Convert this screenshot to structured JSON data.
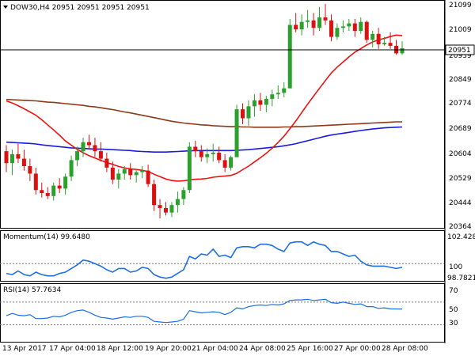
{
  "header": {
    "symbol_line": "DOW30,H4  20951 20951 20951 20951"
  },
  "colors": {
    "bull": "#2ca02c",
    "bear": "#dd1010",
    "sma20": "#ee1111",
    "sma100": "#1a1ae0",
    "sma200": "#8b3a1a",
    "momentum": "#1e6fe0",
    "rsi": "#1e6fe0",
    "price_tag_bg": "#ffffff"
  },
  "price_axis": {
    "labels": [
      "21099",
      "21009",
      "20951",
      "20939",
      "20849",
      "20774",
      "20689",
      "20604",
      "20529",
      "20444",
      "20364"
    ],
    "current": "20951"
  },
  "momentum_panel": {
    "title": "Momentum(14) 99.6480",
    "labels": [
      "102.4286",
      "100",
      "98.7821"
    ]
  },
  "rsi_panel": {
    "title": "RSI(14) 57.7634",
    "labels": [
      "70",
      "50",
      "30"
    ]
  },
  "time_axis": {
    "labels": [
      "13 Apr 2017",
      "17 Apr 04:00",
      "18 Apr 12:00",
      "19 Apr 20:00",
      "21 Apr 04:00",
      "24 Apr 08:00",
      "25 Apr 16:00",
      "27 Apr 00:00",
      "28 Apr 08:00"
    ]
  },
  "chart_data": {
    "type": "candlestick",
    "ylim": [
      20364,
      21099
    ],
    "candles": [
      [
        20607,
        20627,
        20537,
        20567
      ],
      [
        20567,
        20612,
        20527,
        20597
      ],
      [
        20597,
        20632,
        20567,
        20582
      ],
      [
        20582,
        20612,
        20542,
        20557
      ],
      [
        20557,
        20582,
        20507,
        20532
      ],
      [
        20532,
        20552,
        20462,
        20477
      ],
      [
        20477,
        20502,
        20452,
        20467
      ],
      [
        20467,
        20487,
        20447,
        20457
      ],
      [
        20457,
        20502,
        20442,
        20492
      ],
      [
        20492,
        20517,
        20467,
        20482
      ],
      [
        20482,
        20532,
        20462,
        20522
      ],
      [
        20522,
        20592,
        20507,
        20577
      ],
      [
        20577,
        20622,
        20557,
        20607
      ],
      [
        20607,
        20652,
        20587,
        20637
      ],
      [
        20637,
        20662,
        20612,
        20627
      ],
      [
        20627,
        20652,
        20587,
        20607
      ],
      [
        20607,
        20637,
        20572,
        20582
      ],
      [
        20582,
        20602,
        20537,
        20552
      ],
      [
        20552,
        20572,
        20497,
        20512
      ],
      [
        20512,
        20547,
        20482,
        20532
      ],
      [
        20532,
        20557,
        20512,
        20547
      ],
      [
        20547,
        20567,
        20512,
        20527
      ],
      [
        20527,
        20547,
        20502,
        20537
      ],
      [
        20537,
        20557,
        20517,
        20542
      ],
      [
        20542,
        20562,
        20487,
        20497
      ],
      [
        20497,
        20512,
        20407,
        20427
      ],
      [
        20427,
        20447,
        20382,
        20417
      ],
      [
        20417,
        20437,
        20392,
        20402
      ],
      [
        20402,
        20437,
        20387,
        20427
      ],
      [
        20427,
        20472,
        20402,
        20447
      ],
      [
        20447,
        20487,
        20427,
        20477
      ],
      [
        20477,
        20637,
        20467,
        20622
      ],
      [
        20622,
        20642,
        20587,
        20607
      ],
      [
        20607,
        20627,
        20572,
        20587
      ],
      [
        20587,
        20617,
        20567,
        20597
      ],
      [
        20597,
        20632,
        20572,
        20602
      ],
      [
        20602,
        20622,
        20567,
        20577
      ],
      [
        20577,
        20597,
        20537,
        20552
      ],
      [
        20552,
        20592,
        20542,
        20587
      ],
      [
        20587,
        20762,
        20587,
        20747
      ],
      [
        20747,
        20767,
        20697,
        20717
      ],
      [
        20717,
        20777,
        20692,
        20757
      ],
      [
        20757,
        20797,
        20722,
        20777
      ],
      [
        20777,
        20802,
        20742,
        20762
      ],
      [
        20762,
        20792,
        20737,
        20782
      ],
      [
        20782,
        20812,
        20757,
        20797
      ],
      [
        20797,
        20827,
        20782,
        20802
      ],
      [
        20802,
        20837,
        20787,
        20817
      ],
      [
        20817,
        21049,
        20817,
        21029
      ],
      [
        21029,
        21069,
        21004,
        21014
      ],
      [
        21014,
        21064,
        20994,
        21039
      ],
      [
        21039,
        21079,
        21019,
        21044
      ],
      [
        21044,
        21069,
        20994,
        21019
      ],
      [
        21019,
        21089,
        21009,
        21054
      ],
      [
        21054,
        21119,
        21029,
        21044
      ],
      [
        21044,
        21064,
        20974,
        20989
      ],
      [
        20989,
        21034,
        20979,
        21019
      ],
      [
        21019,
        21044,
        21004,
        21024
      ],
      [
        21024,
        21049,
        21009,
        21034
      ],
      [
        21034,
        21049,
        20989,
        21009
      ],
      [
        21009,
        21054,
        20999,
        21039
      ],
      [
        21039,
        21044,
        20969,
        20979
      ],
      [
        20979,
        21009,
        20954,
        20999
      ],
      [
        20999,
        21019,
        20949,
        20964
      ],
      [
        20964,
        20989,
        20959,
        20969
      ],
      [
        20969,
        21004,
        20949,
        20959
      ],
      [
        20959,
        20979,
        20929,
        20934
      ],
      [
        20934,
        20974,
        20929,
        20951
      ]
    ],
    "sma20": [
      20775,
      20768,
      20759,
      20749,
      20738,
      20727,
      20712,
      20695,
      20678,
      20660,
      20641,
      20627,
      20613,
      20602,
      20592,
      20584,
      20576,
      20569,
      20563,
      20556,
      20551,
      20548,
      20546,
      20543,
      20539,
      20530,
      20522,
      20514,
      20509,
      20507,
      20508,
      20511,
      20513,
      20514,
      20516,
      20520,
      20522,
      20524,
      20526,
      20533,
      20545,
      20557,
      20571,
      20585,
      20600,
      20617,
      20636,
      20657,
      20682,
      20708,
      20736,
      20764,
      20791,
      20817,
      20843,
      20868,
      20888,
      20905,
      20922,
      20938,
      20950,
      20962,
      20972,
      20979,
      20984,
      20990,
      20995,
      20993
    ],
    "sma200": [
      20780,
      20779,
      20778,
      20777,
      20776,
      20775,
      20773,
      20771,
      20770,
      20768,
      20766,
      20764,
      20762,
      20760,
      20757,
      20755,
      20752,
      20749,
      20746,
      20742,
      20738,
      20735,
      20731,
      20727,
      20723,
      20719,
      20715,
      20711,
      20707,
      20704,
      20701,
      20699,
      20697,
      20695,
      20694,
      20692,
      20691,
      20690,
      20689,
      20689,
      20688,
      20688,
      20687,
      20687,
      20687,
      20687,
      20687,
      20688,
      20688,
      20689,
      20689,
      20690,
      20691,
      20692,
      20693,
      20694,
      20695,
      20696,
      20697,
      20698,
      20699,
      20700,
      20701,
      20702,
      20703,
      20704,
      20705,
      20705
    ],
    "sma100": [
      20637,
      20636,
      20635,
      20634,
      20633,
      20631,
      20628,
      20626,
      20624,
      20622,
      20620,
      20618,
      20617,
      20616,
      20615,
      20614,
      20614,
      20613,
      20612,
      20611,
      20610,
      20609,
      20607,
      20606,
      20605,
      20604,
      20604,
      20604,
      20605,
      20606,
      20607,
      20608,
      20609,
      20609,
      20609,
      20609,
      20609,
      20609,
      20609,
      20610,
      20611,
      20612,
      20614,
      20616,
      20618,
      20620,
      20622,
      20625,
      20628,
      20632,
      20637,
      20642,
      20647,
      20652,
      20657,
      20661,
      20664,
      20667,
      20670,
      20673,
      20676,
      20679,
      20681,
      20683,
      20685,
      20686,
      20687,
      20688
    ],
    "momentum": [
      99.2,
      99.1,
      99.4,
      99.1,
      99.0,
      99.3,
      99.1,
      99.0,
      99.0,
      99.2,
      99.3,
      99.6,
      99.9,
      100.3,
      100.2,
      100.0,
      99.8,
      99.5,
      99.3,
      99.6,
      99.6,
      99.3,
      99.4,
      99.7,
      99.6,
      99.1,
      98.9,
      98.8,
      98.9,
      99.2,
      99.5,
      100.6,
      100.4,
      100.8,
      100.7,
      101.2,
      100.6,
      100.7,
      100.5,
      101.3,
      101.4,
      101.4,
      101.3,
      101.6,
      101.6,
      101.5,
      101.2,
      101.0,
      101.7,
      101.8,
      101.8,
      101.5,
      101.8,
      101.6,
      101.5,
      101.0,
      101.0,
      100.8,
      100.6,
      100.7,
      100.2,
      99.9,
      99.8,
      99.8,
      99.8,
      99.7,
      99.6,
      99.7
    ],
    "rsi": [
      46,
      50,
      47,
      46,
      48,
      41,
      41,
      42,
      45,
      44,
      47,
      52,
      55,
      56,
      52,
      47,
      43,
      42,
      40,
      42,
      44,
      43,
      45,
      45,
      43,
      36,
      35,
      34,
      35,
      36,
      40,
      55,
      53,
      51,
      52,
      53,
      52,
      48,
      52,
      60,
      58,
      62,
      64,
      65,
      64,
      66,
      65,
      67,
      73,
      74,
      74,
      75,
      73,
      74,
      75,
      69,
      68,
      70,
      68,
      66,
      67,
      62,
      62,
      59,
      60,
      58,
      58,
      57.8
    ],
    "momentum_range": [
      98.7821,
      102.4286
    ],
    "rsi_range": [
      0,
      100
    ],
    "rsi_levels": [
      70,
      50,
      30
    ]
  }
}
